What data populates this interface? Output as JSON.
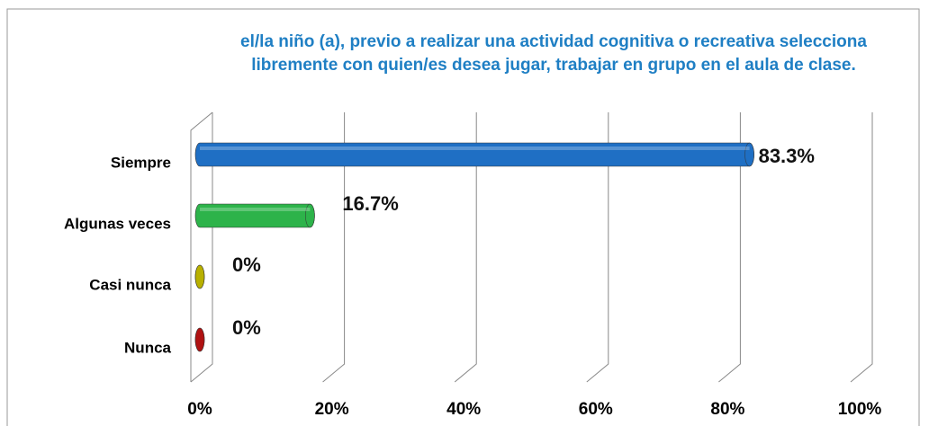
{
  "chart_data": {
    "type": "bar",
    "orientation": "horizontal",
    "title": "el/la niño (a), previo a realizar una actividad cognitiva o recreativa selecciona libremente  con quien/es desea jugar, trabajar en grupo en el aula de clase.",
    "categories": [
      "Siempre",
      "Algunas veces",
      "Casi nunca",
      "Nunca"
    ],
    "values": [
      83.3,
      16.7,
      0,
      0
    ],
    "value_labels": [
      "83.3%",
      "16.7%",
      "0%",
      "0%"
    ],
    "colors": [
      "#1f6fc4",
      "#2db34a",
      "#b8b000",
      "#b01212"
    ],
    "xlim": [
      0,
      100
    ],
    "xticks": [
      {
        "value": 0,
        "label": "0%"
      },
      {
        "value": 20,
        "label": "20%"
      },
      {
        "value": 40,
        "label": "40%"
      },
      {
        "value": 60,
        "label": "60%"
      },
      {
        "value": 80,
        "label": "80%"
      },
      {
        "value": 100,
        "label": "100%"
      }
    ],
    "grid": true
  }
}
